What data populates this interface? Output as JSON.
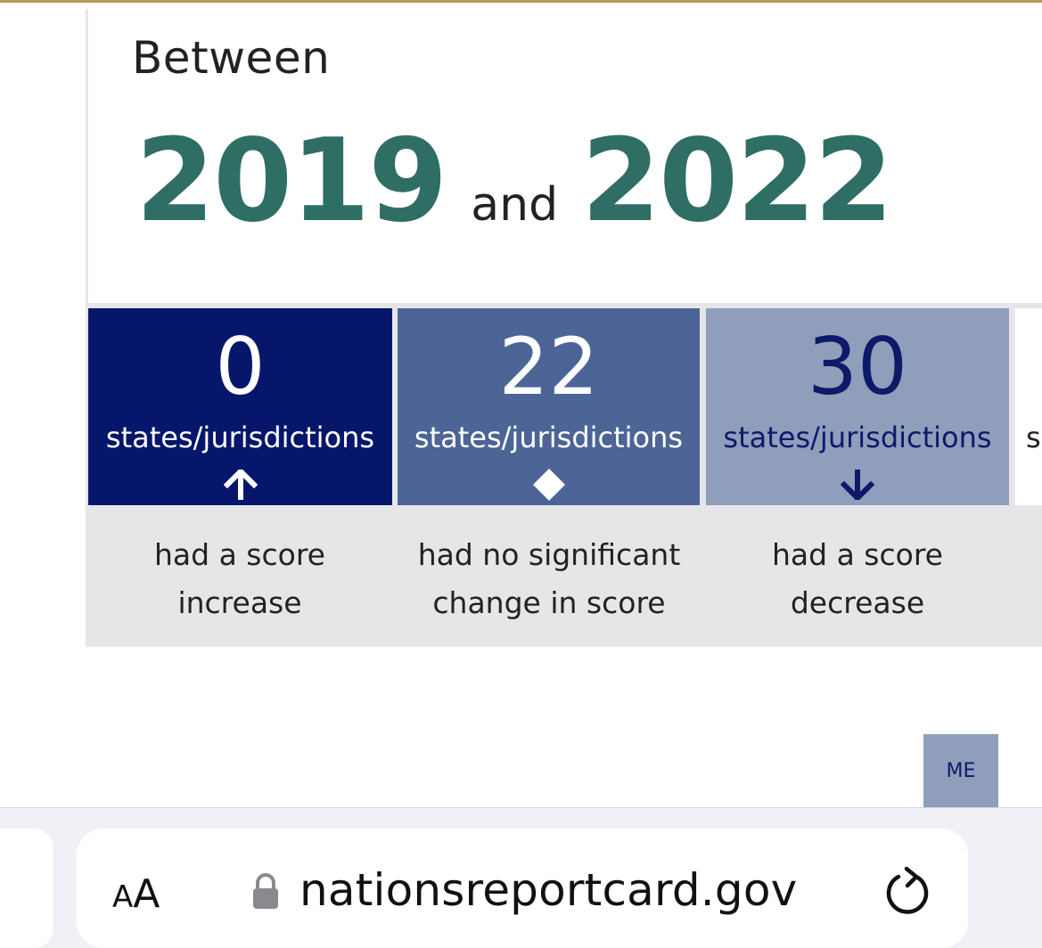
{
  "header": {
    "between_label": "Between",
    "year_start": "2019",
    "and_label": "and",
    "year_end": "2022"
  },
  "summary_cards": [
    {
      "value": "0",
      "unit": "states/jurisdictions",
      "icon": "arrow-up-icon",
      "description_line1": "had a score",
      "description_line2": "increase",
      "color": "#06176b"
    },
    {
      "value": "22",
      "unit": "states/jurisdictions",
      "icon": "diamond-icon",
      "description_line1": "had no significant",
      "description_line2": "change in score",
      "color": "#4c6596"
    },
    {
      "value": "30",
      "unit": "states/jurisdictions",
      "icon": "arrow-down-icon",
      "description_line1": "had a score",
      "description_line2": "decrease",
      "color": "#8e9ebb"
    }
  ],
  "partial_card": {
    "unit_fragment": "s"
  },
  "map": {
    "state_label": "ME",
    "color": "#8e9ebb"
  },
  "browser": {
    "text_size_label_small": "A",
    "text_size_label_large": "A",
    "url": "nationsreportcard.gov"
  },
  "colors": {
    "accent_year": "#2f6e65",
    "top_rule": "#b99b52"
  }
}
